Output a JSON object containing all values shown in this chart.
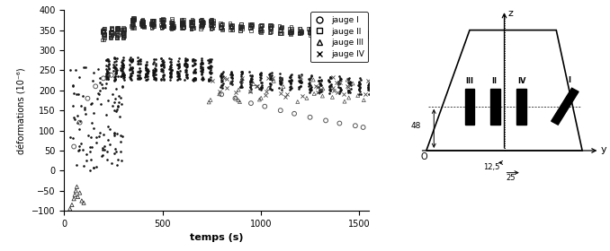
{
  "xlabel": "temps (s)",
  "ylabel": "déformations (10⁻⁶)",
  "xlim": [
    0,
    1550
  ],
  "ylim": [
    -100,
    400
  ],
  "yticks": [
    -100,
    -50,
    0,
    50,
    100,
    150,
    200,
    250,
    300,
    350,
    400
  ],
  "xticks": [
    0,
    500,
    1000,
    1500
  ],
  "bg_color": "#ffffff"
}
